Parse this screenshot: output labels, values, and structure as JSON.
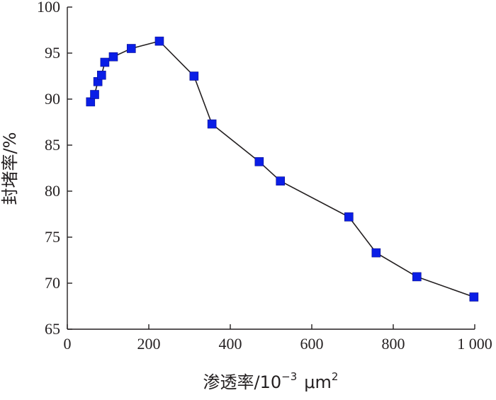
{
  "chart_data": {
    "type": "line",
    "xlabel": "渗透率/10",
    "xlabel_exponent": "−3",
    "xlabel_unit": "μm",
    "xlabel_unit_exponent": "2",
    "ylabel": "封堵率/%",
    "xlim": [
      0,
      1000
    ],
    "ylim": [
      65,
      100
    ],
    "x_ticks": [
      0,
      200,
      400,
      600,
      800,
      1000
    ],
    "x_tick_labels": [
      "0",
      "200",
      "400",
      "600",
      "800",
      "1 000"
    ],
    "y_ticks": [
      65,
      70,
      75,
      80,
      85,
      90,
      95,
      100
    ],
    "y_tick_labels": [
      "65",
      "70",
      "75",
      "80",
      "85",
      "90",
      "95",
      "100"
    ],
    "grid": false,
    "marker": "square",
    "marker_color": "#0a1ee6",
    "line_color": "#231f20",
    "series": [
      {
        "x": [
          57,
          67,
          75,
          84,
          92,
          113,
          157,
          226,
          311,
          355,
          471,
          523,
          691,
          758,
          858,
          998
        ],
        "values": [
          89.7,
          90.5,
          91.9,
          92.6,
          94.0,
          94.6,
          95.5,
          96.3,
          92.5,
          87.3,
          83.2,
          81.1,
          77.2,
          73.3,
          70.7,
          68.5
        ]
      }
    ]
  }
}
